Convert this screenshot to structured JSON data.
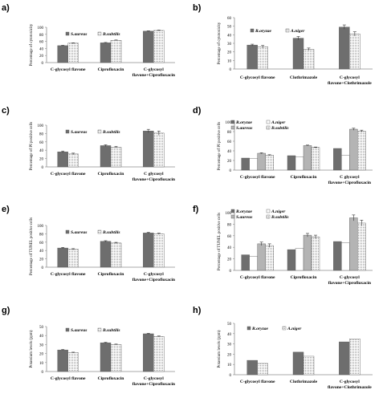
{
  "chart_data": [
    {
      "id": "a",
      "type": "bar",
      "panel_label": "a)",
      "ylabel": "Percentage of cytotoxicity",
      "ylim": [
        0,
        100
      ],
      "yticks": [
        0,
        20,
        40,
        60,
        80,
        100
      ],
      "categories": [
        "C-glycosyl flavone",
        "Ciprofloxacin",
        "C-glycosyl flavone+Ciprofloxacin"
      ],
      "series": [
        {
          "name": "S.aureus",
          "values": [
            48,
            56,
            89
          ],
          "errors": [
            1,
            1,
            1
          ]
        },
        {
          "name": "B.subtilis",
          "values": [
            55,
            63,
            91
          ],
          "errors": [
            1,
            1,
            1
          ]
        }
      ]
    },
    {
      "id": "b",
      "type": "bar",
      "panel_label": "b)",
      "ylabel": "Percentage of cytotoxicity",
      "ylim": [
        0,
        60
      ],
      "yticks": [
        0,
        10,
        20,
        30,
        40,
        50,
        60
      ],
      "categories": [
        "C-glycosyl flavone",
        "Clothrimazole",
        "C-glycosyl flavone+Clothrimazole"
      ],
      "series": [
        {
          "name": "R.oryzae",
          "values": [
            28,
            36,
            49
          ],
          "errors": [
            1,
            2,
            2.5
          ]
        },
        {
          "name": "A.niger",
          "values": [
            26,
            23,
            41
          ],
          "errors": [
            1.5,
            1.5,
            2.5
          ]
        }
      ]
    },
    {
      "id": "c",
      "type": "bar",
      "panel_label": "c)",
      "ylabel": "Percentage of PI positive cells",
      "ylim": [
        0,
        100
      ],
      "yticks": [
        0,
        20,
        40,
        60,
        80,
        100
      ],
      "categories": [
        "C-glycosyl flavone",
        "Ciprofloxacin",
        "C glycosyl flavone+Ciprofloxacin"
      ],
      "series": [
        {
          "name": "S.aureus",
          "values": [
            36,
            51,
            86
          ],
          "errors": [
            2,
            2,
            4
          ]
        },
        {
          "name": "B.subtilis",
          "values": [
            31,
            47,
            81
          ],
          "errors": [
            2,
            2,
            5
          ]
        }
      ]
    },
    {
      "id": "d",
      "type": "bar",
      "panel_label": "d)",
      "ylabel": "Percentage of PI positive cells",
      "ylim": [
        0,
        100
      ],
      "yticks": [
        0,
        20,
        40,
        60,
        80,
        100
      ],
      "categories": [
        "C-glycosyl flavone",
        "Ciprofloxacin",
        "C glycosyl flavone+Ciprofloxacin"
      ],
      "series": [
        {
          "name": "R.oryzae",
          "values": [
            25,
            30,
            45
          ],
          "errors": [
            0,
            0,
            0
          ]
        },
        {
          "name": "A.niger",
          "values": [
            24,
            28,
            31
          ],
          "errors": [
            0,
            0,
            0
          ]
        },
        {
          "name": "S.aureus",
          "values": [
            35,
            51,
            85
          ],
          "errors": [
            1,
            1,
            2
          ]
        },
        {
          "name": "B.subtilis",
          "values": [
            31,
            47,
            81
          ],
          "errors": [
            1,
            1,
            2
          ]
        }
      ]
    },
    {
      "id": "e",
      "type": "bar",
      "panel_label": "e)",
      "ylabel": "Percentage of TUNEL positive cells",
      "ylim": [
        0,
        100
      ],
      "yticks": [
        0,
        20,
        40,
        60,
        80,
        100
      ],
      "categories": [
        "C-glycosyl flavone",
        "Ciprofloxacin",
        "C-glycosyl flavone+Ciprofloxacin"
      ],
      "series": [
        {
          "name": "S.aureus",
          "values": [
            46,
            62,
            82
          ],
          "errors": [
            1.5,
            1.5,
            1.5
          ]
        },
        {
          "name": "B.subtilis",
          "values": [
            43,
            58,
            80
          ],
          "errors": [
            1.5,
            1.5,
            1.5
          ]
        }
      ]
    },
    {
      "id": "f",
      "type": "bar",
      "panel_label": "f)",
      "ylabel": "Percentage of TUNEL positive cells",
      "ylim": [
        0,
        100
      ],
      "yticks": [
        0,
        20,
        40,
        60,
        80,
        100
      ],
      "categories": [
        "C-glycosyl flavone",
        "Ciprofloxacin",
        "C-glycosyl flavone+Ciprofloxacin"
      ],
      "series": [
        {
          "name": "R.oryzae",
          "values": [
            27,
            36,
            50
          ],
          "errors": [
            0,
            0,
            0
          ]
        },
        {
          "name": "A.niger",
          "values": [
            24,
            38,
            48
          ],
          "errors": [
            0,
            0,
            0
          ]
        },
        {
          "name": "S.aureus",
          "values": [
            46,
            61,
            91
          ],
          "errors": [
            3,
            3,
            5
          ]
        },
        {
          "name": "B.subtilis",
          "values": [
            43,
            58,
            82
          ],
          "errors": [
            3,
            3,
            5
          ]
        }
      ]
    },
    {
      "id": "g",
      "type": "bar",
      "panel_label": "g)",
      "ylabel": "Potassium levels (ppm)",
      "ylim": [
        0,
        50
      ],
      "yticks": [
        0,
        10,
        20,
        30,
        40,
        50
      ],
      "categories": [
        "C-glycosyl flavone",
        "Ciprofloxacin",
        "C-glycosyl flavone+Ciprofloxacin"
      ],
      "series": [
        {
          "name": "S.aureus",
          "values": [
            24,
            32,
            42
          ],
          "errors": [
            0.5,
            0.5,
            0.5
          ]
        },
        {
          "name": "B.subtilis",
          "values": [
            21,
            30,
            39
          ],
          "errors": [
            0.5,
            0.5,
            0.5
          ]
        }
      ]
    },
    {
      "id": "h",
      "type": "bar",
      "panel_label": "h)",
      "ylabel": "Potassium levels (ppm)",
      "ylim": [
        0,
        50
      ],
      "yticks": [
        0,
        10,
        20,
        30,
        40,
        50
      ],
      "categories": [
        "C-glycosyl flavone",
        "Clothrimazole",
        "C-glycosyl flavone+Clothrimazole"
      ],
      "series": [
        {
          "name": "R.oryzae",
          "values": [
            14,
            22,
            32
          ],
          "errors": [
            0,
            0,
            0
          ]
        },
        {
          "name": "A.niger",
          "values": [
            11,
            18,
            35
          ],
          "errors": [
            0,
            0,
            0
          ]
        }
      ]
    }
  ],
  "colors": {
    "dark": "#6e6e6e",
    "mid": "#b4b4b4",
    "light": "#ffffff",
    "axis": "#8c8c8c"
  }
}
